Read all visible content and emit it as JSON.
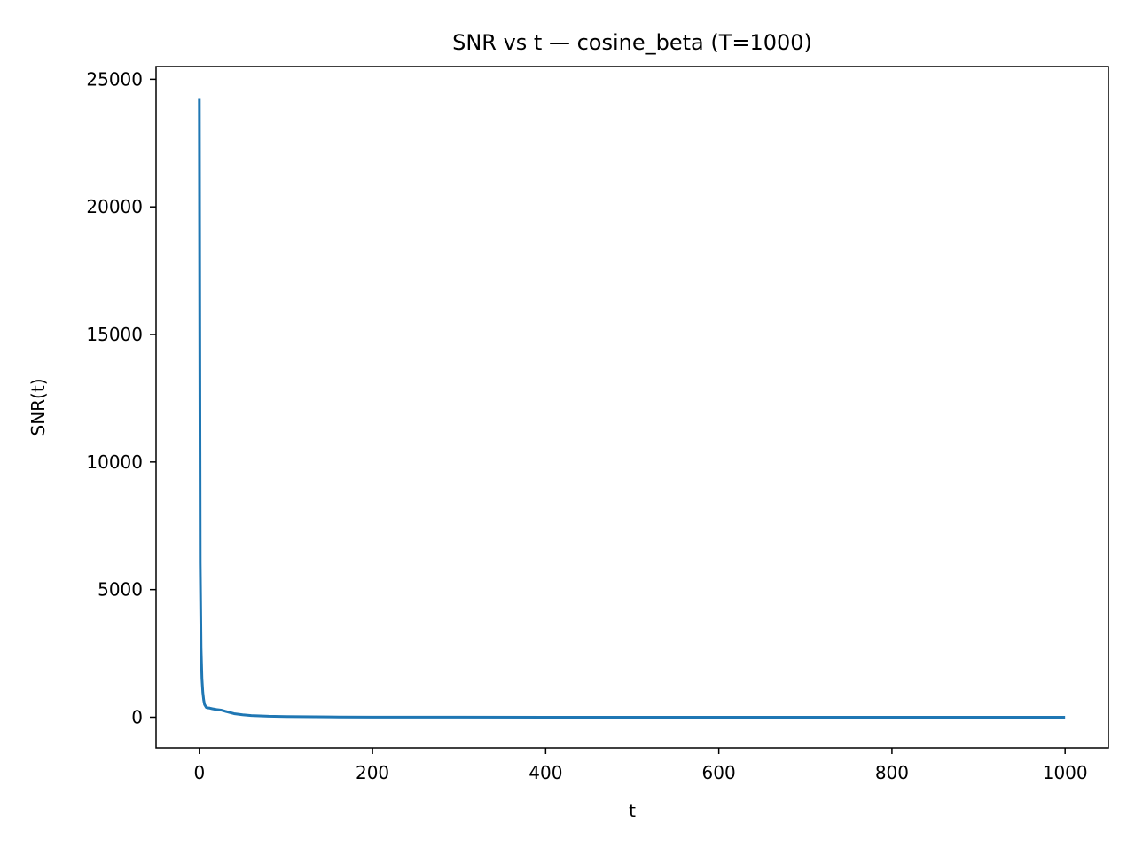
{
  "chart_data": {
    "type": "line",
    "title": "SNR vs t — cosine_beta (T=1000)",
    "xlabel": "t",
    "ylabel": "SNR(t)",
    "xlim": [
      -50,
      1050
    ],
    "ylim": [
      -1200,
      25500
    ],
    "x_ticks": [
      0,
      200,
      400,
      600,
      800,
      1000
    ],
    "y_ticks": [
      0,
      5000,
      10000,
      15000,
      20000,
      25000
    ],
    "grid": false,
    "legend": "none",
    "series": [
      {
        "color": "#1f77b4",
        "x": [
          0,
          1,
          2,
          3,
          4,
          5,
          6,
          8,
          10,
          12,
          15,
          20,
          25,
          30,
          40,
          50,
          60,
          80,
          100,
          150,
          200,
          300,
          400,
          500,
          600,
          700,
          800,
          900,
          1000
        ],
        "y": [
          24230,
          6050,
          2700,
          1515,
          970,
          675,
          495,
          380,
          365,
          355,
          330,
          300,
          280,
          230,
          140,
          95,
          66,
          37,
          24,
          10.4,
          5.7,
          2.4,
          1.2,
          0.6,
          0.3,
          0.15,
          0.07,
          0.02,
          0
        ]
      }
    ]
  }
}
